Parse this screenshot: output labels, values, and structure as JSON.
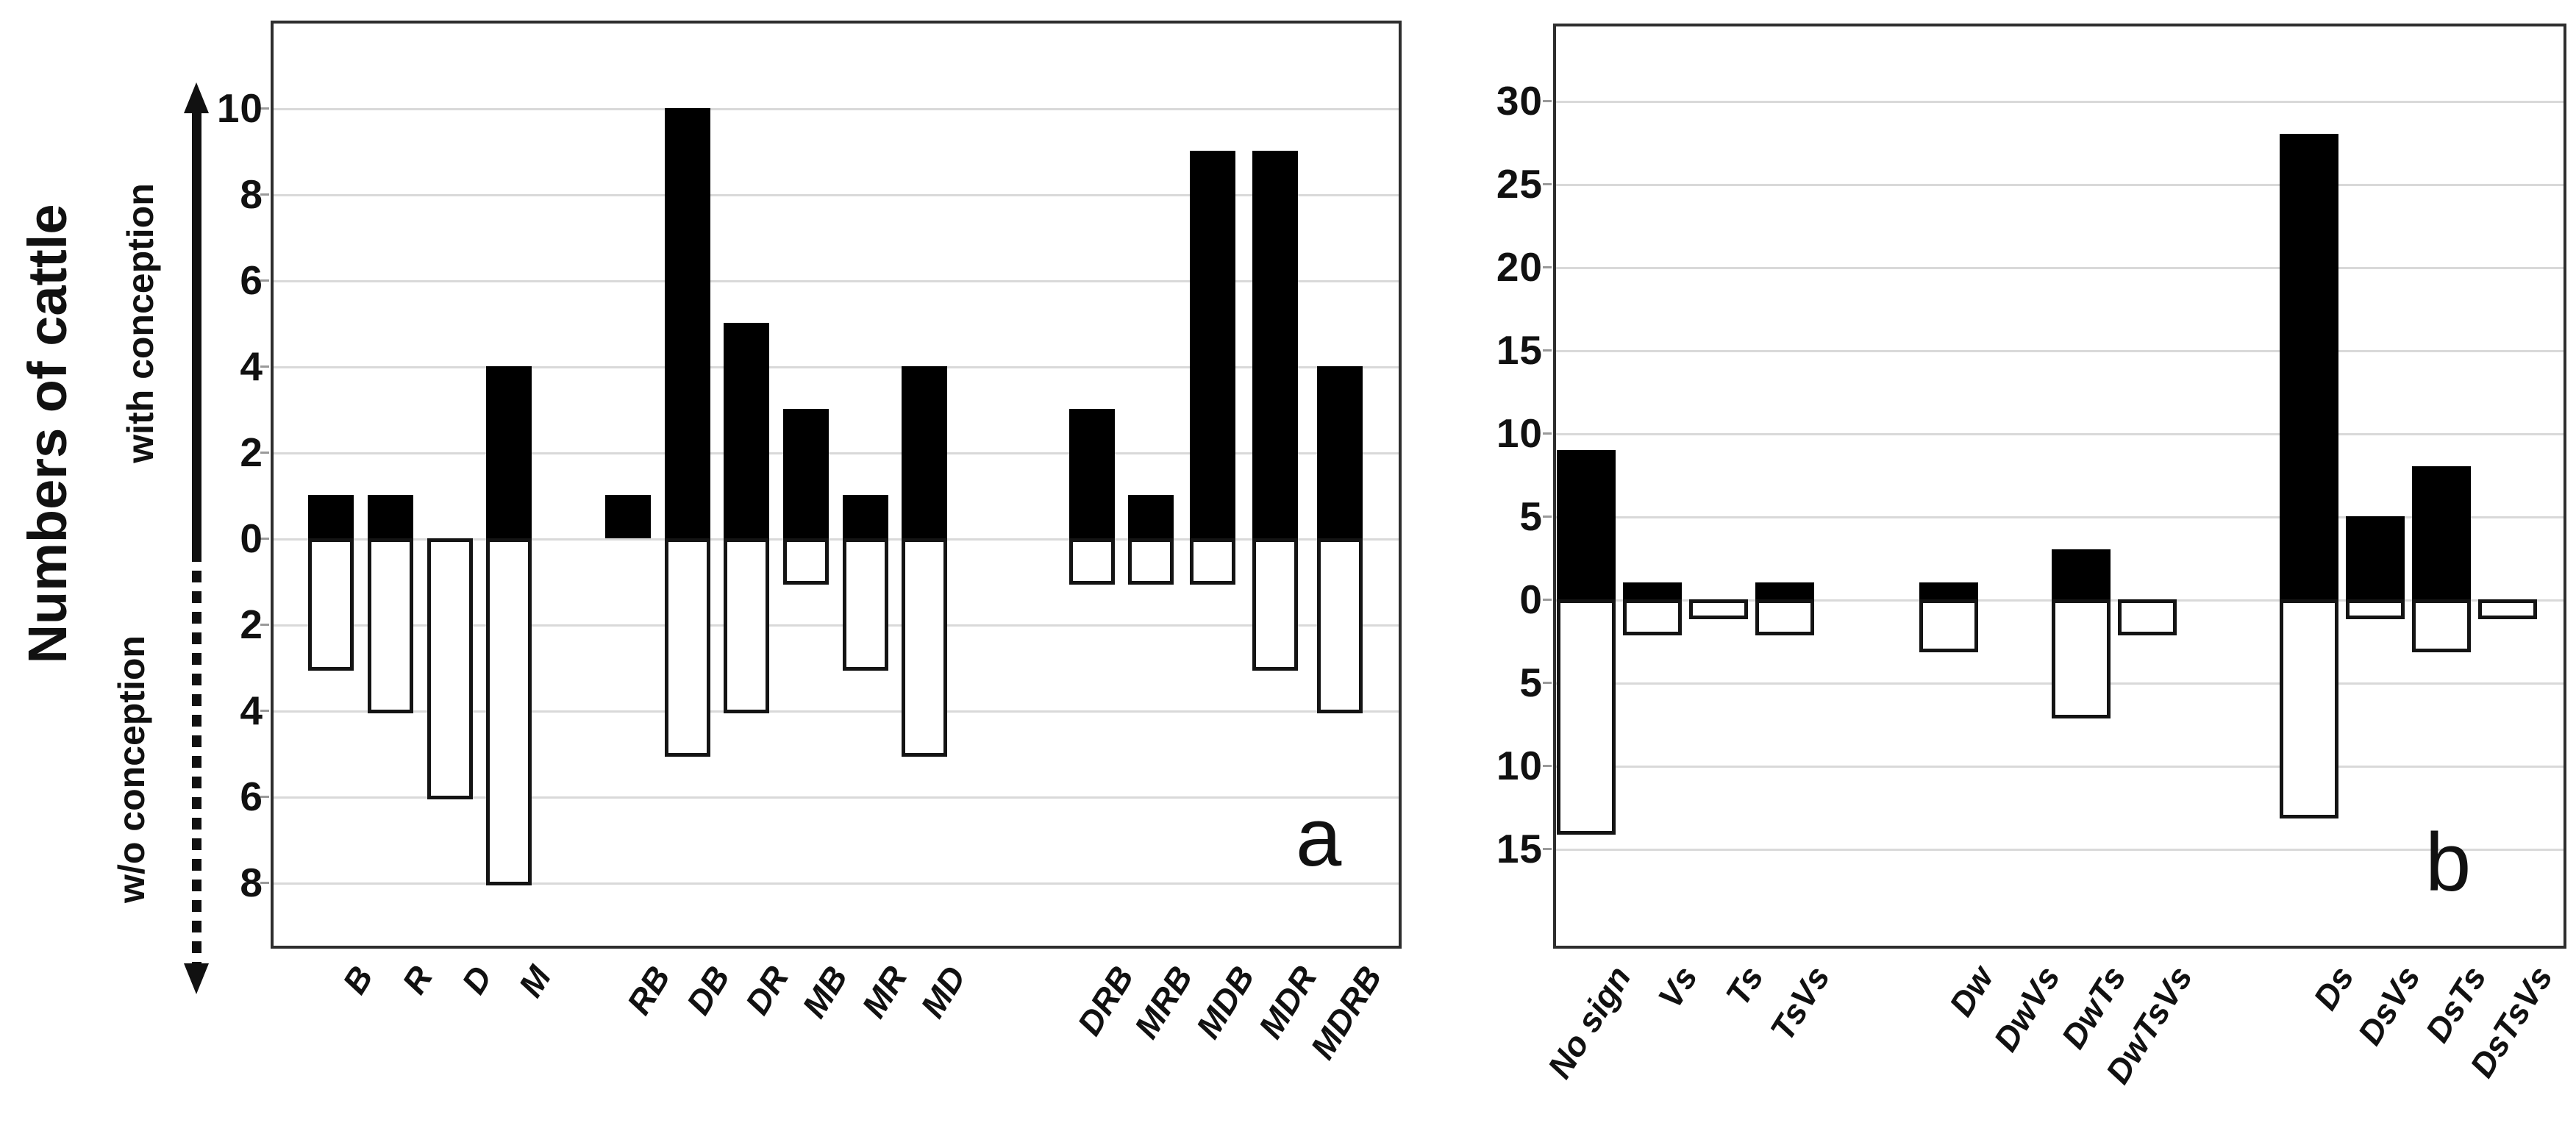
{
  "figure": {
    "y_axis_title": "Numbers of cattle",
    "upper_axis_label": "with conception",
    "lower_axis_label": "w/o conception",
    "colors": {
      "with_conception_fill": "#000000",
      "without_conception_fill": "#ffffff",
      "bar_outline": "#141414",
      "gridline": "#d9d9d9",
      "plot_border": "#2e2e2e",
      "text": "#111111"
    }
  },
  "chart_data": [
    {
      "type": "bar",
      "panel_label": "a",
      "orientation": "diverging-vertical-stacked",
      "ylabel": "Numbers of cattle",
      "upper_direction_label": "with conception",
      "lower_direction_label": "w/o conception",
      "grid": true,
      "y_tick_labels": [
        "10",
        "8",
        "6",
        "4",
        "2",
        "0",
        "2",
        "4",
        "6",
        "8"
      ],
      "y_gridline_values": [
        10,
        8,
        6,
        4,
        2,
        0,
        -2,
        -4,
        -6,
        -8
      ],
      "ylim_up": 12,
      "ylim_down": -9.5,
      "categories": [
        "B",
        "R",
        "D",
        "M",
        "RB",
        "DB",
        "DR",
        "MB",
        "MR",
        "MD",
        "DRB",
        "MRB",
        "MDB",
        "MDR",
        "MDRB"
      ],
      "group_start_indices": [
        0,
        4,
        10
      ],
      "series": [
        {
          "name": "with conception",
          "direction": "up",
          "color": "#000000",
          "values": [
            1,
            1,
            0,
            4,
            1,
            10,
            5,
            3,
            1,
            4,
            3,
            1,
            9,
            9,
            4
          ]
        },
        {
          "name": "w/o conception",
          "direction": "down",
          "color": "#ffffff",
          "values": [
            3,
            4,
            6,
            8,
            0,
            5,
            4,
            1,
            3,
            5,
            1,
            1,
            1,
            3,
            4
          ]
        }
      ]
    },
    {
      "type": "bar",
      "panel_label": "b",
      "orientation": "diverging-vertical-stacked",
      "ylabel": "Numbers of cattle",
      "upper_direction_label": "with conception",
      "lower_direction_label": "w/o conception",
      "grid": true,
      "y_tick_labels": [
        "30",
        "25",
        "20",
        "15",
        "10",
        "5",
        "0",
        "5",
        "10",
        "15"
      ],
      "y_gridline_values": [
        30,
        25,
        20,
        15,
        10,
        5,
        0,
        -5,
        -10,
        -15
      ],
      "ylim_up": 33,
      "ylim_down": -21,
      "categories": [
        "No sign",
        "Vs",
        "Ts",
        "TsVs",
        "Dw",
        "DwVs",
        "DwTs",
        "DwTsVs",
        "Ds",
        "DsVs",
        "DsTs",
        "DsTsVs"
      ],
      "group_start_indices": [
        0,
        4,
        8
      ],
      "series": [
        {
          "name": "with conception",
          "direction": "up",
          "color": "#000000",
          "values": [
            9,
            1,
            0,
            1,
            1,
            0,
            3,
            0,
            28,
            5,
            8,
            0
          ]
        },
        {
          "name": "w/o conception",
          "direction": "down",
          "color": "#ffffff",
          "values": [
            14,
            2,
            1,
            2,
            3,
            0,
            7,
            2,
            13,
            1,
            3,
            1
          ]
        }
      ]
    }
  ]
}
